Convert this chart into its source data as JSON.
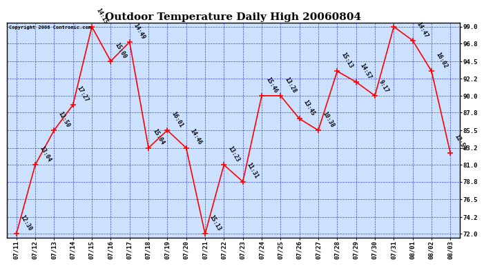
{
  "title": "Outdoor Temperature Daily High 20060804",
  "copyright": "Copyright 2006 Contronic.com",
  "bg_color": "#ffffff",
  "plot_bg_color": "#cce0ff",
  "line_color": "red",
  "marker_color": "red",
  "grid_color": "#0000cc",
  "x_labels": [
    "07/11",
    "07/12",
    "07/13",
    "07/14",
    "07/15",
    "07/16",
    "07/17",
    "07/18",
    "07/19",
    "07/20",
    "07/21",
    "07/22",
    "07/23",
    "07/24",
    "07/25",
    "07/26",
    "07/27",
    "07/28",
    "07/29",
    "07/30",
    "07/31",
    "08/01",
    "08/02",
    "08/03"
  ],
  "y_values": [
    72.0,
    81.0,
    85.5,
    88.8,
    99.0,
    94.5,
    97.0,
    83.2,
    85.5,
    83.2,
    72.0,
    81.0,
    78.8,
    90.0,
    90.0,
    87.0,
    85.5,
    93.2,
    91.8,
    90.0,
    99.0,
    97.2,
    93.2,
    82.5
  ],
  "point_labels": [
    "12:30",
    "13:04",
    "12:50",
    "17:27",
    "14:15",
    "15:00",
    "14:49",
    "15:04",
    "16:01",
    "14:46",
    "15:13",
    "13:23",
    "11:31",
    "15:46",
    "13:28",
    "13:45",
    "10:38",
    "15:13",
    "14:57",
    "9:17",
    "",
    "14:47",
    "16:02",
    "12:53"
  ],
  "yticks": [
    72.0,
    74.2,
    76.5,
    78.8,
    81.0,
    83.2,
    85.5,
    87.8,
    90.0,
    92.2,
    94.5,
    96.8,
    99.0
  ],
  "ylim_min": 71.5,
  "ylim_max": 99.5,
  "title_fontsize": 11,
  "label_fontsize": 6,
  "tick_fontsize": 6.5,
  "line_width": 1.2
}
